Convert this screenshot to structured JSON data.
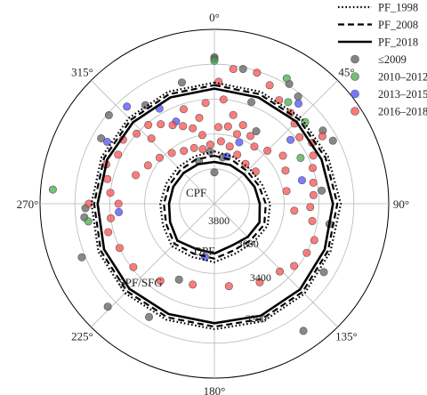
{
  "chart_data": {
    "type": "scatter",
    "subtype": "polar",
    "angle_axis": {
      "direction": "clockwise",
      "zero": "top",
      "ticks": [
        0,
        45,
        90,
        135,
        180,
        225,
        270,
        315
      ],
      "tick_labels": [
        "0°",
        "45°",
        "90°",
        "135°",
        "180°",
        "225°",
        "270°",
        "315°"
      ]
    },
    "radial_axis": {
      "reversed": true,
      "range": [
        2900,
        3900
      ],
      "ring_values": [
        3100,
        3300,
        3500,
        3700
      ],
      "tick_labels": [
        {
          "value": 3200,
          "text": "3200",
          "angle": 160
        },
        {
          "value": 3400,
          "text": "3400",
          "angle": 148
        },
        {
          "value": 3600,
          "text": "3600",
          "angle": 140
        },
        {
          "value": 3800,
          "text": "3800",
          "angle": 165
        }
      ]
    },
    "zone_labels": [
      {
        "text": "CPF",
        "angle": 300,
        "value": 3780
      },
      {
        "text": "DPF",
        "angle": 192,
        "value": 3620
      },
      {
        "text": "SPF/SFG",
        "angle": 223,
        "value": 3280
      }
    ],
    "boundaries": [
      {
        "name": "PF_1998",
        "style": "dotted",
        "values": {
          "outer": [
            3205,
            3205,
            3200,
            3195,
            3175,
            3180,
            3170,
            3170,
            3180,
            3180,
            3175,
            3180,
            3195,
            3200,
            3205,
            3205
          ],
          "inner": [
            3600,
            3610,
            3615,
            3605,
            3580,
            3570,
            3585,
            3590,
            3565,
            3570,
            3555,
            3580,
            3590,
            3600,
            3605,
            3605
          ]
        }
      },
      {
        "name": "PF_2008",
        "style": "dashed",
        "values": {
          "outer": [
            3220,
            3220,
            3215,
            3210,
            3195,
            3195,
            3185,
            3185,
            3195,
            3195,
            3190,
            3195,
            3210,
            3215,
            3220,
            3220
          ],
          "inner": [
            3625,
            3630,
            3635,
            3625,
            3605,
            3590,
            3605,
            3610,
            3585,
            3590,
            3575,
            3600,
            3610,
            3620,
            3625,
            3625
          ]
        }
      },
      {
        "name": "PF_2018",
        "style": "solid",
        "values": {
          "outer": [
            3240,
            3240,
            3235,
            3235,
            3220,
            3215,
            3205,
            3205,
            3215,
            3215,
            3210,
            3215,
            3230,
            3235,
            3240,
            3240
          ],
          "inner": [
            3660,
            3660,
            3660,
            3650,
            3640,
            3620,
            3630,
            3640,
            3615,
            3620,
            3600,
            3625,
            3640,
            3645,
            3650,
            3655
          ]
        }
      }
    ],
    "series": [
      {
        "name": "≤2009",
        "color": "#5a5a5a",
        "points": [
          {
            "angle": 0,
            "value": 3060
          },
          {
            "angle": 0,
            "value": 3070
          },
          {
            "angle": 12,
            "value": 3110
          },
          {
            "angle": 32,
            "value": 3090
          },
          {
            "angle": 38,
            "value": 3120
          },
          {
            "angle": 56,
            "value": 3150
          },
          {
            "angle": 62,
            "value": 3130
          },
          {
            "angle": 83,
            "value": 3280
          },
          {
            "angle": 100,
            "value": 3230
          },
          {
            "angle": 122,
            "value": 3160
          },
          {
            "angle": 145,
            "value": 3010
          },
          {
            "angle": 205,
            "value": 3420
          },
          {
            "angle": 210,
            "value": 3150
          },
          {
            "angle": 226,
            "value": 3050
          },
          {
            "angle": 248,
            "value": 3080
          },
          {
            "angle": 268,
            "value": 3160
          },
          {
            "angle": 264,
            "value": 3150
          },
          {
            "angle": 300,
            "value": 3150
          },
          {
            "angle": 310,
            "value": 3110
          },
          {
            "angle": 325,
            "value": 3210
          },
          {
            "angle": 345,
            "value": 3180
          },
          {
            "angle": 20,
            "value": 3280
          },
          {
            "angle": 0,
            "value": 3720
          },
          {
            "angle": 10,
            "value": 3630
          },
          {
            "angle": 355,
            "value": 3600
          },
          {
            "angle": 340,
            "value": 3640
          },
          {
            "angle": 30,
            "value": 3420
          }
        ]
      },
      {
        "name": "2010–2012",
        "color": "#44a844",
        "points": [
          {
            "angle": 0,
            "value": 3080
          },
          {
            "angle": 30,
            "value": 3070
          },
          {
            "angle": 36,
            "value": 3180
          },
          {
            "angle": 48,
            "value": 3200
          },
          {
            "angle": 62,
            "value": 3340
          },
          {
            "angle": 275,
            "value": 2970
          },
          {
            "angle": 262,
            "value": 3170
          }
        ]
      },
      {
        "name": "2013–2015",
        "color": "#4a4aff",
        "points": [
          {
            "angle": 40,
            "value": 3150
          },
          {
            "angle": 50,
            "value": 3330
          },
          {
            "angle": 75,
            "value": 3380
          },
          {
            "angle": 300,
            "value": 3190
          },
          {
            "angle": 318,
            "value": 3150
          },
          {
            "angle": 330,
            "value": 3270
          },
          {
            "angle": 335,
            "value": 3380
          },
          {
            "angle": 22,
            "value": 3520
          },
          {
            "angle": 190,
            "value": 3590
          },
          {
            "angle": 265,
            "value": 3350
          },
          {
            "angle": 15,
            "value": 3620
          }
        ]
      },
      {
        "name": "2016–2018",
        "color": "#ff4a4a",
        "points": [
          {
            "angle": 8,
            "value": 3120
          },
          {
            "angle": 18,
            "value": 3110
          },
          {
            "angle": 25,
            "value": 3150
          },
          {
            "angle": 32,
            "value": 3200
          },
          {
            "angle": 40,
            "value": 3220
          },
          {
            "angle": 45,
            "value": 3250
          },
          {
            "angle": 52,
            "value": 3280
          },
          {
            "angle": 58,
            "value": 3240
          },
          {
            "angle": 64,
            "value": 3270
          },
          {
            "angle": 70,
            "value": 3300
          },
          {
            "angle": 78,
            "value": 3320
          },
          {
            "angle": 85,
            "value": 3330
          },
          {
            "angle": 92,
            "value": 3350
          },
          {
            "angle": 100,
            "value": 3330
          },
          {
            "angle": 110,
            "value": 3290
          },
          {
            "angle": 118,
            "value": 3300
          },
          {
            "angle": 128,
            "value": 3320
          },
          {
            "angle": 136,
            "value": 3360
          },
          {
            "angle": 150,
            "value": 3380
          },
          {
            "angle": 170,
            "value": 3420
          },
          {
            "angle": 195,
            "value": 3420
          },
          {
            "angle": 215,
            "value": 3360
          },
          {
            "angle": 232,
            "value": 3310
          },
          {
            "angle": 245,
            "value": 3300
          },
          {
            "angle": 255,
            "value": 3270
          },
          {
            "angle": 262,
            "value": 3300
          },
          {
            "angle": 270,
            "value": 3350
          },
          {
            "angle": 276,
            "value": 3300
          },
          {
            "angle": 283,
            "value": 3270
          },
          {
            "angle": 290,
            "value": 3240
          },
          {
            "angle": 297,
            "value": 3280
          },
          {
            "angle": 305,
            "value": 3260
          },
          {
            "angle": 312,
            "value": 3300
          },
          {
            "angle": 320,
            "value": 3310
          },
          {
            "angle": 326,
            "value": 3350
          },
          {
            "angle": 332,
            "value": 3390
          },
          {
            "angle": 338,
            "value": 3420
          },
          {
            "angle": 344,
            "value": 3450
          },
          {
            "angle": 350,
            "value": 3400
          },
          {
            "angle": 355,
            "value": 3320
          },
          {
            "angle": 2,
            "value": 3200
          },
          {
            "angle": 5,
            "value": 3300
          },
          {
            "angle": 12,
            "value": 3380
          },
          {
            "angle": 20,
            "value": 3420
          },
          {
            "angle": 28,
            "value": 3460
          },
          {
            "angle": 35,
            "value": 3500
          },
          {
            "angle": 45,
            "value": 3470
          },
          {
            "angle": 55,
            "value": 3420
          },
          {
            "angle": 65,
            "value": 3450
          },
          {
            "angle": 80,
            "value": 3480
          },
          {
            "angle": 95,
            "value": 3440
          },
          {
            "angle": 290,
            "value": 3420
          },
          {
            "angle": 300,
            "value": 3460
          },
          {
            "angle": 310,
            "value": 3490
          },
          {
            "angle": 320,
            "value": 3520
          },
          {
            "angle": 330,
            "value": 3550
          },
          {
            "angle": 340,
            "value": 3560
          },
          {
            "angle": 348,
            "value": 3580
          },
          {
            "angle": 356,
            "value": 3560
          },
          {
            "angle": 6,
            "value": 3540
          },
          {
            "angle": 15,
            "value": 3560
          },
          {
            "angle": 25,
            "value": 3590
          },
          {
            "angle": 38,
            "value": 3610
          },
          {
            "angle": 52,
            "value": 3600
          },
          {
            "angle": 10,
            "value": 3450
          },
          {
            "angle": 18,
            "value": 3480
          },
          {
            "angle": 350,
            "value": 3500
          },
          {
            "angle": 342,
            "value": 3330
          },
          {
            "angle": 316,
            "value": 3380
          },
          {
            "angle": 58,
            "value": 3170
          },
          {
            "angle": 3,
            "value": 3460
          },
          {
            "angle": 270,
            "value": 3180
          }
        ]
      }
    ],
    "legend": {
      "position": "top-right",
      "entries": [
        {
          "label": "PF_1998",
          "kind": "line",
          "style": "dotted"
        },
        {
          "label": "PF_2008",
          "kind": "line",
          "style": "dashed"
        },
        {
          "label": "PF_2018",
          "kind": "line",
          "style": "solid"
        },
        {
          "label": "≤2009",
          "kind": "marker",
          "color": "#5a5a5a"
        },
        {
          "label": "2010–2012",
          "kind": "marker",
          "color": "#44a844"
        },
        {
          "label": "2013–2015",
          "kind": "marker",
          "color": "#4a4aff"
        },
        {
          "label": "2016–2018",
          "kind": "marker",
          "color": "#ff4a4a"
        }
      ]
    },
    "grid": true
  }
}
